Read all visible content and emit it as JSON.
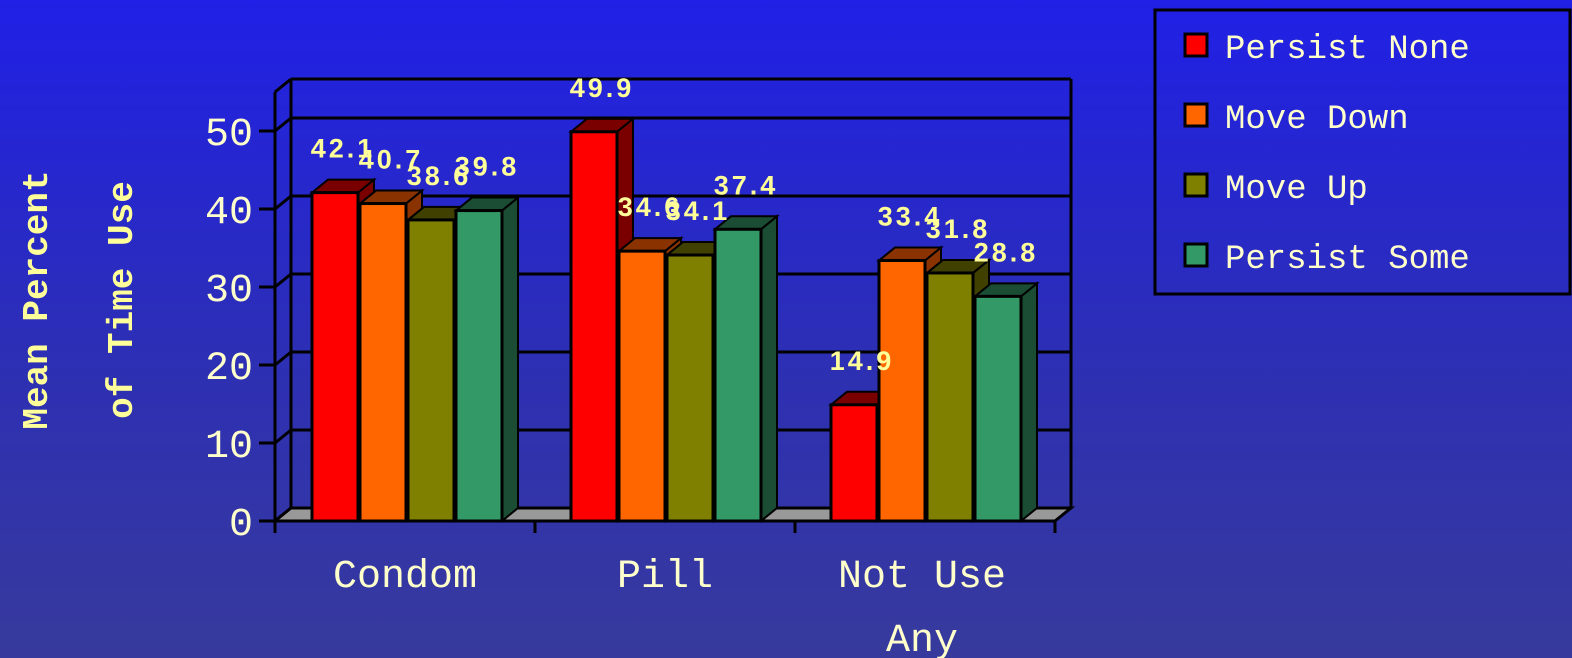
{
  "colors": {
    "text": "#ffff99",
    "label": "#ffffcc",
    "axis": "#000000",
    "floor": "#999999"
  },
  "chart_data": {
    "type": "bar",
    "ylabel_lines": [
      "Mean Percent",
      "of Time Use"
    ],
    "categories": [
      [
        "Condom"
      ],
      [
        "Pill"
      ],
      [
        "Not Use",
        "Any"
      ]
    ],
    "series": [
      {
        "name": "Persist None",
        "color": "#ff0000",
        "side": "#7a0000",
        "values": [
          42.1,
          49.9,
          14.9
        ]
      },
      {
        "name": "Move Down",
        "color": "#ff6600",
        "side": "#8a3300",
        "values": [
          40.7,
          34.6,
          33.4
        ]
      },
      {
        "name": "Move Up",
        "color": "#808000",
        "side": "#404000",
        "values": [
          38.6,
          34.1,
          31.8
        ]
      },
      {
        "name": "Persist Some",
        "color": "#339966",
        "side": "#1a4d33",
        "values": [
          39.8,
          37.4,
          28.8
        ]
      }
    ],
    "ylim": [
      0,
      50
    ],
    "yticks": [
      0,
      10,
      20,
      30,
      40,
      50
    ],
    "grid": true,
    "legend": "top-right"
  }
}
